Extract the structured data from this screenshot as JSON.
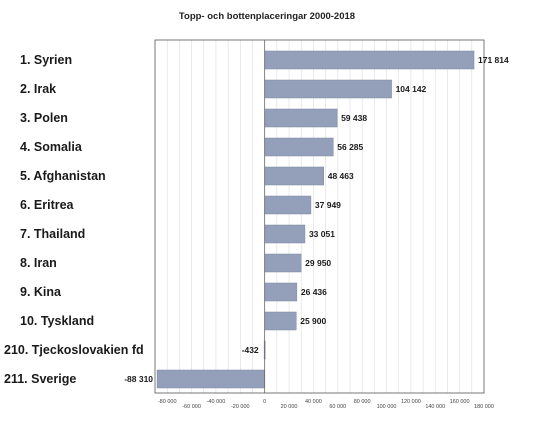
{
  "chart_data": {
    "type": "bar",
    "orientation": "horizontal",
    "title": "Topp- och bottenplaceringar 2000-2018",
    "xlabel": "",
    "ylabel": "",
    "categories": [
      "1. Syrien",
      "2. Irak",
      "3. Polen",
      "4. Somalia",
      "5. Afghanistan",
      "6. Eritrea",
      "7. Thailand",
      "8. Iran",
      "9. Kina",
      "10. Tyskland",
      "210. Tjeckoslovakien fd",
      "211. Sverige"
    ],
    "values": [
      171814,
      104142,
      59438,
      56285,
      48463,
      37949,
      33051,
      29950,
      26436,
      25900,
      -432,
      -88310
    ],
    "value_labels": [
      "171 814",
      "104 142",
      "59 438",
      "56 285",
      "48 463",
      "37 949",
      "33 051",
      "29 950",
      "26 436",
      "25 900",
      "-432",
      "-88 310"
    ],
    "xlim": [
      -90000,
      180000
    ],
    "ticks": [
      -80000,
      -60000,
      -40000,
      -20000,
      0,
      20000,
      40000,
      60000,
      80000,
      100000,
      120000,
      140000,
      160000,
      180000
    ],
    "tick_labels": [
      "-80 000",
      "-60 000",
      "-40 000",
      "-20 000",
      "0",
      "20 000",
      "40 000",
      "60 000",
      "80 000",
      "100 000",
      "120 000",
      "140 000",
      "160 000",
      "180 000"
    ],
    "grid": "vertical",
    "bar_color": "#949fba",
    "legend": "none"
  }
}
